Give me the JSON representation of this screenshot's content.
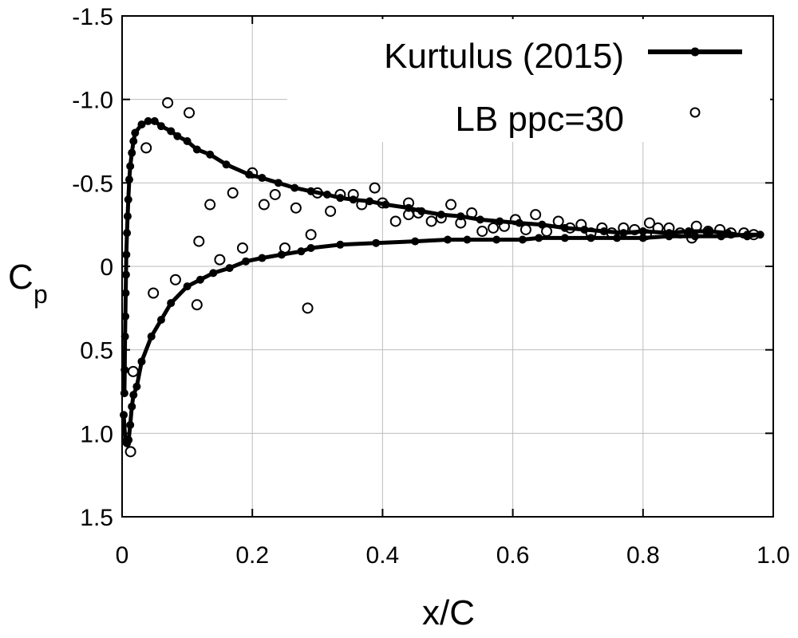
{
  "chart_data": {
    "type": "line",
    "xlabel": "x/C",
    "ylabel": "C",
    "ylabel_subscript": "p",
    "xlim": [
      0,
      1
    ],
    "ylim": [
      1.5,
      -1.5
    ],
    "xticks": [
      "0",
      "0.2",
      "0.4",
      "0.6",
      "0.8",
      "1.0"
    ],
    "xtick_values": [
      0,
      0.2,
      0.4,
      0.6,
      0.8,
      1.0
    ],
    "yticks": [
      "-1.5",
      "-1.0",
      "-0.5",
      "0",
      "0.5",
      "1.0",
      "1.5"
    ],
    "ytick_values": [
      -1.5,
      -1.0,
      -0.5,
      0,
      0.5,
      1.0,
      1.5
    ],
    "grid": true,
    "legend_position": "top-right",
    "series": [
      {
        "name": "Kurtulus (2015)",
        "style": "line-with-filled-dots",
        "color": "#000000",
        "points": [
          [
            0.0025,
            0.89
          ],
          [
            0.005,
            1.05
          ],
          [
            0.0075,
            1.06
          ],
          [
            0.01,
            1.04
          ],
          [
            0.0125,
            0.95
          ],
          [
            0.015,
            0.84
          ],
          [
            0.0175,
            0.77
          ],
          [
            0.0225,
            0.72
          ],
          [
            0.03,
            0.57
          ],
          [
            0.045,
            0.42
          ],
          [
            0.06,
            0.32
          ],
          [
            0.075,
            0.22
          ],
          [
            0.1,
            0.12
          ],
          [
            0.12,
            0.08
          ],
          [
            0.14,
            0.04
          ],
          [
            0.165,
            0.01
          ],
          [
            0.19,
            -0.03
          ],
          [
            0.215,
            -0.05
          ],
          [
            0.245,
            -0.07
          ],
          [
            0.275,
            -0.09
          ],
          [
            0.29,
            -0.11
          ],
          [
            0.335,
            -0.13
          ],
          [
            0.39,
            -0.14
          ],
          [
            0.45,
            -0.15
          ],
          [
            0.5,
            -0.16
          ],
          [
            0.53,
            -0.16
          ],
          [
            0.575,
            -0.16
          ],
          [
            0.615,
            -0.16
          ],
          [
            0.64,
            -0.17
          ],
          [
            0.68,
            -0.17
          ],
          [
            0.72,
            -0.17
          ],
          [
            0.76,
            -0.17
          ],
          [
            0.8,
            -0.17
          ],
          [
            0.84,
            -0.18
          ],
          [
            0.88,
            -0.18
          ],
          [
            0.92,
            -0.18
          ],
          [
            0.96,
            -0.19
          ],
          [
            0.98,
            -0.19
          ],
          [
            0.96,
            -0.18
          ],
          [
            0.93,
            -0.2
          ],
          [
            0.9,
            -0.21
          ],
          [
            0.87,
            -0.21
          ],
          [
            0.84,
            -0.2
          ],
          [
            0.8,
            -0.21
          ],
          [
            0.77,
            -0.2
          ],
          [
            0.74,
            -0.21
          ],
          [
            0.71,
            -0.22
          ],
          [
            0.68,
            -0.23
          ],
          [
            0.645,
            -0.25
          ],
          [
            0.61,
            -0.26
          ],
          [
            0.58,
            -0.27
          ],
          [
            0.55,
            -0.28
          ],
          [
            0.52,
            -0.3
          ],
          [
            0.49,
            -0.31
          ],
          [
            0.46,
            -0.33
          ],
          [
            0.44,
            -0.35
          ],
          [
            0.405,
            -0.37
          ],
          [
            0.38,
            -0.39
          ],
          [
            0.355,
            -0.4
          ],
          [
            0.335,
            -0.41
          ],
          [
            0.315,
            -0.43
          ],
          [
            0.29,
            -0.45
          ],
          [
            0.265,
            -0.47
          ],
          [
            0.24,
            -0.5
          ],
          [
            0.215,
            -0.53
          ],
          [
            0.195,
            -0.55
          ],
          [
            0.16,
            -0.61
          ],
          [
            0.135,
            -0.67
          ],
          [
            0.115,
            -0.7
          ],
          [
            0.1,
            -0.75
          ],
          [
            0.085,
            -0.78
          ],
          [
            0.075,
            -0.81
          ],
          [
            0.06,
            -0.84
          ],
          [
            0.05,
            -0.87
          ],
          [
            0.04,
            -0.87
          ],
          [
            0.03,
            -0.85
          ],
          [
            0.02,
            -0.8
          ],
          [
            0.0175,
            -0.75
          ],
          [
            0.015,
            -0.68
          ],
          [
            0.0125,
            -0.6
          ],
          [
            0.011,
            -0.52
          ],
          [
            0.0095,
            -0.4
          ],
          [
            0.0085,
            -0.3
          ],
          [
            0.0075,
            -0.2
          ],
          [
            0.0065,
            -0.07
          ],
          [
            0.006,
            0.05
          ],
          [
            0.0055,
            0.16
          ],
          [
            0.005,
            0.3
          ],
          [
            0.0045,
            0.42
          ],
          [
            0.004,
            0.62
          ],
          [
            0.0035,
            0.76
          ]
        ]
      },
      {
        "name": "LB ppc=30",
        "style": "open-circles",
        "color": "#000000",
        "points": [
          [
            0.07,
            -0.98
          ],
          [
            0.103,
            -0.92
          ],
          [
            0.037,
            -0.71
          ],
          [
            0.135,
            -0.37
          ],
          [
            0.17,
            -0.44
          ],
          [
            0.118,
            -0.15
          ],
          [
            0.15,
            -0.04
          ],
          [
            0.185,
            -0.11
          ],
          [
            0.082,
            0.08
          ],
          [
            0.048,
            0.16
          ],
          [
            0.115,
            0.23
          ],
          [
            0.017,
            0.63
          ],
          [
            0.013,
            1.11
          ],
          [
            0.2,
            -0.56
          ],
          [
            0.218,
            -0.37
          ],
          [
            0.235,
            -0.43
          ],
          [
            0.25,
            -0.11
          ],
          [
            0.267,
            -0.35
          ],
          [
            0.285,
            0.25
          ],
          [
            0.29,
            -0.19
          ],
          [
            0.3,
            -0.44
          ],
          [
            0.32,
            -0.33
          ],
          [
            0.335,
            -0.43
          ],
          [
            0.355,
            -0.43
          ],
          [
            0.368,
            -0.37
          ],
          [
            0.388,
            -0.47
          ],
          [
            0.4,
            -0.38
          ],
          [
            0.42,
            -0.27
          ],
          [
            0.44,
            -0.38
          ],
          [
            0.44,
            -0.31
          ],
          [
            0.455,
            -0.32
          ],
          [
            0.475,
            -0.27
          ],
          [
            0.49,
            -0.29
          ],
          [
            0.505,
            -0.37
          ],
          [
            0.52,
            -0.26
          ],
          [
            0.537,
            -0.32
          ],
          [
            0.553,
            -0.21
          ],
          [
            0.57,
            -0.23
          ],
          [
            0.587,
            -0.24
          ],
          [
            0.604,
            -0.28
          ],
          [
            0.62,
            -0.22
          ],
          [
            0.635,
            -0.31
          ],
          [
            0.652,
            -0.21
          ],
          [
            0.67,
            -0.27
          ],
          [
            0.688,
            -0.23
          ],
          [
            0.705,
            -0.25
          ],
          [
            0.72,
            -0.2
          ],
          [
            0.737,
            -0.23
          ],
          [
            0.752,
            -0.2
          ],
          [
            0.77,
            -0.23
          ],
          [
            0.787,
            -0.22
          ],
          [
            0.805,
            -0.19
          ],
          [
            0.81,
            -0.26
          ],
          [
            0.823,
            -0.23
          ],
          [
            0.84,
            -0.23
          ],
          [
            0.857,
            -0.2
          ],
          [
            0.875,
            -0.17
          ],
          [
            0.882,
            -0.24
          ],
          [
            0.9,
            -0.21
          ],
          [
            0.918,
            -0.22
          ],
          [
            0.935,
            -0.2
          ],
          [
            0.955,
            -0.2
          ],
          [
            0.97,
            -0.19
          ]
        ]
      }
    ]
  }
}
